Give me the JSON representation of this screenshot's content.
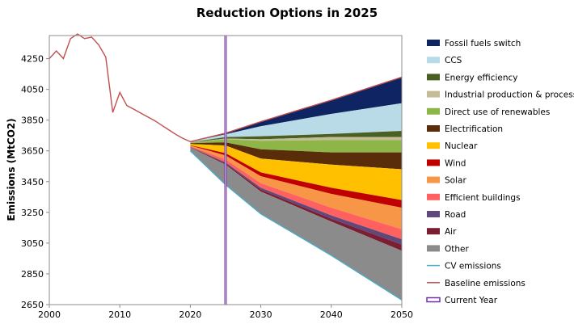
{
  "chart_data": {
    "type": "area",
    "title": "Reduction Options in 2025",
    "xlabel": "",
    "ylabel": "Emissions (MtCO2)",
    "xlim": [
      2000,
      2050
    ],
    "ylim": [
      2650,
      4400
    ],
    "xticks": [
      2000,
      2010,
      2020,
      2030,
      2040,
      2050
    ],
    "yticks": [
      2650,
      2850,
      3050,
      3250,
      3450,
      3650,
      3850,
      4050,
      4250
    ],
    "current_year": 2025,
    "baseline_history": {
      "x": [
        2000,
        2001,
        2002,
        2003,
        2004,
        2005,
        2006,
        2007,
        2008,
        2009,
        2010,
        2011,
        2012,
        2013,
        2014,
        2015,
        2016,
        2017,
        2018,
        2019,
        2020
      ],
      "y": [
        4250,
        4300,
        4250,
        4380,
        4410,
        4380,
        4390,
        4340,
        4260,
        3900,
        4030,
        3945,
        3920,
        3895,
        3870,
        3845,
        3815,
        3785,
        3755,
        3730,
        3710
      ]
    },
    "projection_x": [
      2020,
      2025,
      2030,
      2040,
      2050
    ],
    "baseline": [
      3710,
      3765,
      3840,
      3980,
      4130
    ],
    "cv_emissions": [
      3650,
      3430,
      3240,
      2970,
      2680
    ],
    "series": [
      {
        "name": "Fossil fuels switch",
        "color": "#0e2463",
        "values": [
          3710,
          3765,
          3840,
          3980,
          4130
        ]
      },
      {
        "name": "CCS",
        "color": "#b8dbe7",
        "values": [
          3708,
          3758,
          3810,
          3890,
          3960
        ]
      },
      {
        "name": "Energy efficiency",
        "color": "#4a5f22",
        "values": [
          3706,
          3740,
          3745,
          3760,
          3780
        ]
      },
      {
        "name": "Industrial production & process",
        "color": "#c4bc97",
        "values": [
          3704,
          3730,
          3725,
          3740,
          3740
        ]
      },
      {
        "name": "Direct use of renewables",
        "color": "#8db548",
        "values": [
          3703,
          3725,
          3715,
          3720,
          3720
        ]
      },
      {
        "name": "Electrification",
        "color": "#5a2d0a",
        "values": [
          3700,
          3705,
          3660,
          3640,
          3640
        ]
      },
      {
        "name": "Nuclear",
        "color": "#ffc000",
        "values": [
          3695,
          3685,
          3600,
          3560,
          3530
        ]
      },
      {
        "name": "Wind",
        "color": "#c00000",
        "values": [
          3687,
          3635,
          3510,
          3410,
          3330
        ]
      },
      {
        "name": "Solar",
        "color": "#f79646",
        "values": [
          3684,
          3620,
          3485,
          3370,
          3280
        ]
      },
      {
        "name": "Efficient buildings",
        "color": "#ff6161",
        "values": [
          3680,
          3595,
          3440,
          3280,
          3140
        ]
      },
      {
        "name": "Road",
        "color": "#60497a",
        "values": [
          3676,
          3575,
          3410,
          3230,
          3075
        ]
      },
      {
        "name": "Air",
        "color": "#7b1d33",
        "values": [
          3674,
          3568,
          3398,
          3208,
          3040
        ]
      },
      {
        "name": "Other",
        "color": "#8b8b8b",
        "values": [
          3672,
          3560,
          3385,
          3190,
          3000
        ]
      }
    ],
    "lines": [
      {
        "name": "CV emissions",
        "color": "#4bacc6"
      },
      {
        "name": "Baseline emissions",
        "color": "#c0504d"
      },
      {
        "name": "Current Year",
        "color": "#7030a0"
      }
    ],
    "legend_position": "right"
  }
}
